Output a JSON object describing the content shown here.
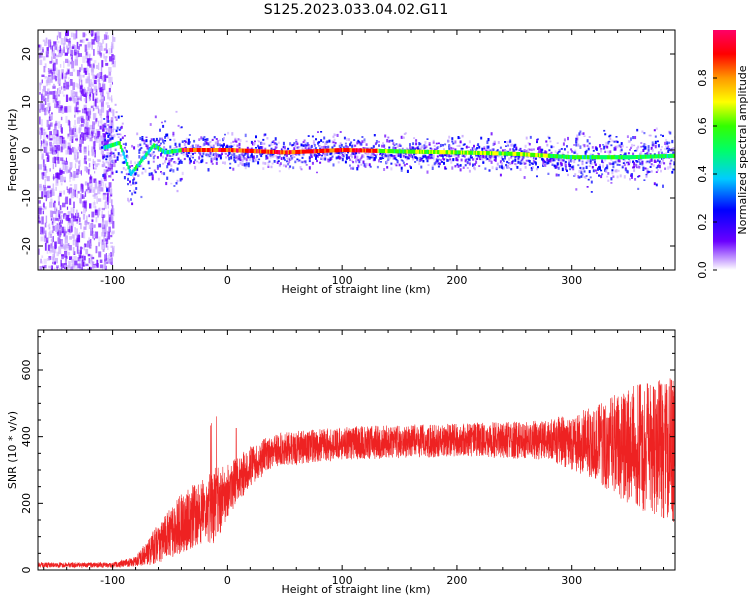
{
  "title": "S125.2023.033.04.02.G11",
  "colors": {
    "snr_line": "#ee2222",
    "colormap": [
      "#6a00ff",
      "#0000ff",
      "#00ccff",
      "#00ff66",
      "#33ff00",
      "#ffff00",
      "#ff9900",
      "#ff0000",
      "#ff0066"
    ]
  },
  "chart_data": [
    {
      "type": "heatmap",
      "title": "S125.2023.033.04.02.G11",
      "xlabel": "Height of straight line (km)",
      "ylabel": "Frequency (Hz)",
      "xlim": [
        -165,
        390
      ],
      "ylim": [
        -25,
        25
      ],
      "xticks": [
        "-100",
        "0",
        "100",
        "200",
        "300"
      ],
      "yticks": [
        "20",
        "10",
        "0",
        "-10",
        "-20"
      ],
      "colorbar": {
        "label": "Normalized spectral amplitude",
        "range": [
          0,
          1
        ],
        "ticks": [
          "0.0",
          "0.2",
          "0.4",
          "0.6",
          "0.8"
        ]
      },
      "ridge": [
        {
          "x": -108,
          "y": 0.5
        },
        {
          "x": -95,
          "y": 1.5
        },
        {
          "x": -85,
          "y": -5
        },
        {
          "x": -75,
          "y": -2
        },
        {
          "x": -65,
          "y": 1
        },
        {
          "x": -55,
          "y": -0.5
        },
        {
          "x": -40,
          "y": 0
        },
        {
          "x": 0,
          "y": 0
        },
        {
          "x": 50,
          "y": -0.5
        },
        {
          "x": 100,
          "y": 0
        },
        {
          "x": 150,
          "y": -0.3
        },
        {
          "x": 200,
          "y": -0.5
        },
        {
          "x": 250,
          "y": -0.8
        },
        {
          "x": 300,
          "y": -1.5
        },
        {
          "x": 350,
          "y": -1.5
        },
        {
          "x": 390,
          "y": -1.2
        }
      ]
    },
    {
      "type": "line",
      "xlabel": "Height of straight line (km)",
      "ylabel": "SNR (10 * v/v)",
      "xlim": [
        -165,
        390
      ],
      "ylim": [
        0,
        720
      ],
      "xticks": [
        "-100",
        "0",
        "100",
        "200",
        "300"
      ],
      "yticks": [
        "0",
        "200",
        "400",
        "600"
      ],
      "series": [
        {
          "envelope": [
            {
              "x": -165,
              "mean": 15,
              "spread": 8
            },
            {
              "x": -100,
              "mean": 15,
              "spread": 8
            },
            {
              "x": -80,
              "mean": 25,
              "spread": 15
            },
            {
              "x": -60,
              "mean": 80,
              "spread": 60
            },
            {
              "x": -40,
              "mean": 140,
              "spread": 90
            },
            {
              "x": -20,
              "mean": 180,
              "spread": 100
            },
            {
              "x": -10,
              "mean": 200,
              "spread": 120
            },
            {
              "x": 0,
              "mean": 240,
              "spread": 80
            },
            {
              "x": 20,
              "mean": 310,
              "spread": 60
            },
            {
              "x": 40,
              "mean": 360,
              "spread": 50
            },
            {
              "x": 100,
              "mean": 380,
              "spread": 50
            },
            {
              "x": 200,
              "mean": 390,
              "spread": 50
            },
            {
              "x": 280,
              "mean": 390,
              "spread": 60
            },
            {
              "x": 320,
              "mean": 380,
              "spread": 110
            },
            {
              "x": 350,
              "mean": 370,
              "spread": 180
            },
            {
              "x": 390,
              "mean": 360,
              "spread": 220
            }
          ]
        }
      ]
    }
  ]
}
